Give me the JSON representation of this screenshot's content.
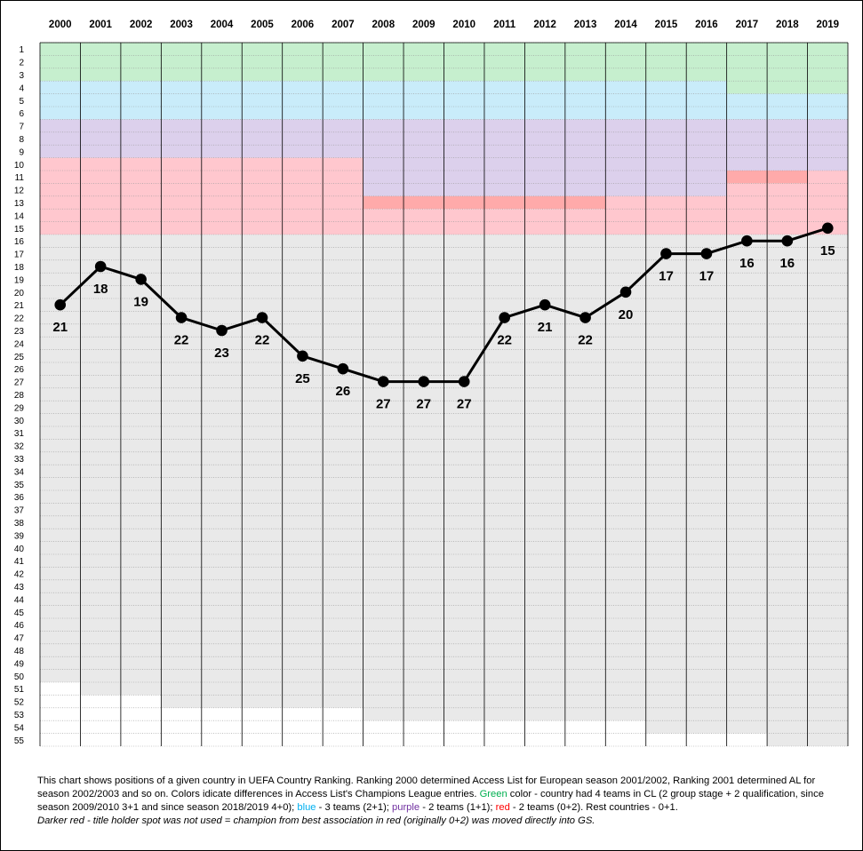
{
  "chart_data": {
    "type": "line",
    "title": "",
    "x": [
      "2000",
      "2001",
      "2002",
      "2003",
      "2004",
      "2005",
      "2006",
      "2007",
      "2008",
      "2009",
      "2010",
      "2011",
      "2012",
      "2013",
      "2014",
      "2015",
      "2016",
      "2017",
      "2018",
      "2019"
    ],
    "y_ticks": [
      "1",
      "2",
      "3",
      "4",
      "5",
      "6",
      "7",
      "8",
      "9",
      "10",
      "11",
      "12",
      "13",
      "14",
      "15",
      "16",
      "17",
      "18",
      "19",
      "20",
      "21",
      "22",
      "23",
      "24",
      "25",
      "26",
      "27",
      "28",
      "29",
      "30",
      "31",
      "32",
      "33",
      "34",
      "35",
      "36",
      "37",
      "38",
      "39",
      "40",
      "41",
      "42",
      "43",
      "44",
      "45",
      "46",
      "47",
      "48",
      "49",
      "50",
      "51",
      "52",
      "53",
      "54",
      "55"
    ],
    "ylim": [
      55,
      1
    ],
    "y_axis_reversed": true,
    "series": [
      {
        "values": [
          21,
          18,
          19,
          22,
          23,
          22,
          25,
          26,
          27,
          27,
          27,
          22,
          21,
          22,
          20,
          17,
          17,
          16,
          16,
          15
        ],
        "data_labels": [
          "21",
          "18",
          "19",
          "22",
          "23",
          "22",
          "25",
          "26",
          "27",
          "27",
          "27",
          "22",
          "21",
          "22",
          "20",
          "17",
          "17",
          "16",
          "16",
          "15"
        ],
        "color": "#000000"
      }
    ],
    "grid": true,
    "legend": "none",
    "background_zones": {
      "colors": {
        "green": "#c6efce",
        "blue": "#c9ecfa",
        "purple": "#dcd0ec",
        "red": "#ffc7ce",
        "dark_red": "#ffaaaa",
        "grey": "#e9e9e9",
        "white": "#ffffff"
      },
      "per_year_rank_ranges": [
        {
          "year": "2000",
          "green": [
            1,
            3
          ],
          "blue": [
            4,
            6
          ],
          "purple": [
            7,
            9
          ],
          "red": [
            10,
            15
          ],
          "grey": [
            16,
            50
          ],
          "white": [
            51,
            55
          ]
        },
        {
          "year": "2001",
          "green": [
            1,
            3
          ],
          "blue": [
            4,
            6
          ],
          "purple": [
            7,
            9
          ],
          "red": [
            10,
            15
          ],
          "grey": [
            16,
            51
          ],
          "white": [
            52,
            55
          ]
        },
        {
          "year": "2002",
          "green": [
            1,
            3
          ],
          "blue": [
            4,
            6
          ],
          "purple": [
            7,
            9
          ],
          "red": [
            10,
            15
          ],
          "grey": [
            16,
            51
          ],
          "white": [
            52,
            55
          ]
        },
        {
          "year": "2003",
          "green": [
            1,
            3
          ],
          "blue": [
            4,
            6
          ],
          "purple": [
            7,
            9
          ],
          "red": [
            10,
            15
          ],
          "grey": [
            16,
            52
          ],
          "white": [
            53,
            55
          ]
        },
        {
          "year": "2004",
          "green": [
            1,
            3
          ],
          "blue": [
            4,
            6
          ],
          "purple": [
            7,
            9
          ],
          "red": [
            10,
            15
          ],
          "grey": [
            16,
            52
          ],
          "white": [
            53,
            55
          ]
        },
        {
          "year": "2005",
          "green": [
            1,
            3
          ],
          "blue": [
            4,
            6
          ],
          "purple": [
            7,
            9
          ],
          "red": [
            10,
            15
          ],
          "grey": [
            16,
            52
          ],
          "white": [
            53,
            55
          ]
        },
        {
          "year": "2006",
          "green": [
            1,
            3
          ],
          "blue": [
            4,
            6
          ],
          "purple": [
            7,
            9
          ],
          "red": [
            10,
            15
          ],
          "grey": [
            16,
            52
          ],
          "white": [
            53,
            55
          ]
        },
        {
          "year": "2007",
          "green": [
            1,
            3
          ],
          "blue": [
            4,
            6
          ],
          "purple": [
            7,
            9
          ],
          "red": [
            10,
            15
          ],
          "grey": [
            16,
            52
          ],
          "white": [
            53,
            55
          ]
        },
        {
          "year": "2008",
          "green": [
            1,
            3
          ],
          "blue": [
            4,
            6
          ],
          "purple": [
            7,
            12
          ],
          "dark_red": [
            13,
            13
          ],
          "red": [
            14,
            15
          ],
          "grey": [
            16,
            53
          ],
          "white": [
            54,
            55
          ]
        },
        {
          "year": "2009",
          "green": [
            1,
            3
          ],
          "blue": [
            4,
            6
          ],
          "purple": [
            7,
            12
          ],
          "dark_red": [
            13,
            13
          ],
          "red": [
            14,
            15
          ],
          "grey": [
            16,
            53
          ],
          "white": [
            54,
            55
          ]
        },
        {
          "year": "2010",
          "green": [
            1,
            3
          ],
          "blue": [
            4,
            6
          ],
          "purple": [
            7,
            12
          ],
          "dark_red": [
            13,
            13
          ],
          "red": [
            14,
            15
          ],
          "grey": [
            16,
            53
          ],
          "white": [
            54,
            55
          ]
        },
        {
          "year": "2011",
          "green": [
            1,
            3
          ],
          "blue": [
            4,
            6
          ],
          "purple": [
            7,
            12
          ],
          "dark_red": [
            13,
            13
          ],
          "red": [
            14,
            15
          ],
          "grey": [
            16,
            53
          ],
          "white": [
            54,
            55
          ]
        },
        {
          "year": "2012",
          "green": [
            1,
            3
          ],
          "blue": [
            4,
            6
          ],
          "purple": [
            7,
            12
          ],
          "dark_red": [
            13,
            13
          ],
          "red": [
            14,
            15
          ],
          "grey": [
            16,
            53
          ],
          "white": [
            54,
            55
          ]
        },
        {
          "year": "2013",
          "green": [
            1,
            3
          ],
          "blue": [
            4,
            6
          ],
          "purple": [
            7,
            12
          ],
          "dark_red": [
            13,
            13
          ],
          "red": [
            14,
            15
          ],
          "grey": [
            16,
            53
          ],
          "white": [
            54,
            55
          ]
        },
        {
          "year": "2014",
          "green": [
            1,
            3
          ],
          "blue": [
            4,
            6
          ],
          "purple": [
            7,
            12
          ],
          "red": [
            13,
            15
          ],
          "grey": [
            16,
            53
          ],
          "white": [
            54,
            55
          ]
        },
        {
          "year": "2015",
          "green": [
            1,
            3
          ],
          "blue": [
            4,
            6
          ],
          "purple": [
            7,
            12
          ],
          "red": [
            13,
            15
          ],
          "grey": [
            16,
            54
          ],
          "white": [
            55,
            55
          ]
        },
        {
          "year": "2016",
          "green": [
            1,
            3
          ],
          "blue": [
            4,
            6
          ],
          "purple": [
            7,
            12
          ],
          "red": [
            13,
            15
          ],
          "grey": [
            16,
            54
          ],
          "white": [
            55,
            55
          ]
        },
        {
          "year": "2017",
          "green": [
            1,
            4
          ],
          "blue": [
            5,
            6
          ],
          "purple": [
            7,
            10
          ],
          "dark_red": [
            11,
            11
          ],
          "red": [
            12,
            15
          ],
          "grey": [
            16,
            54
          ],
          "white": [
            55,
            55
          ]
        },
        {
          "year": "2018",
          "green": [
            1,
            4
          ],
          "blue": [
            5,
            6
          ],
          "purple": [
            7,
            10
          ],
          "dark_red": [
            11,
            11
          ],
          "red": [
            12,
            15
          ],
          "grey": [
            16,
            55
          ]
        },
        {
          "year": "2019",
          "green": [
            1,
            4
          ],
          "blue": [
            5,
            6
          ],
          "purple": [
            7,
            10
          ],
          "red": [
            11,
            15
          ],
          "grey": [
            16,
            55
          ]
        }
      ]
    }
  },
  "caption": {
    "part1": "This chart shows positions of a given country in  UEFA Country Ranking. Ranking 2000 determined Access List for European season 2001/2002, Ranking 2001 determined AL for season 2002/2003 and so on.  Colors idicate differences in Access List's Champions League entries.  ",
    "green_word": "Green",
    "part2": " color - country had 4 teams in CL (2 group stage + 2 qualification, since season 2009/2010 3+1 and since season 2018/2019  4+0); ",
    "blue_word": "blue",
    "part3": " - 3 teams  (2+1); ",
    "purple_word": "purple",
    "part4": " - 2 teams (1+1); ",
    "red_word": "red",
    "part5": " - 2 teams (0+2). Rest countries - 0+1.",
    "note": "Darker red - title holder spot was not used = champion from best association in red (originally 0+2) was moved directly into GS."
  }
}
